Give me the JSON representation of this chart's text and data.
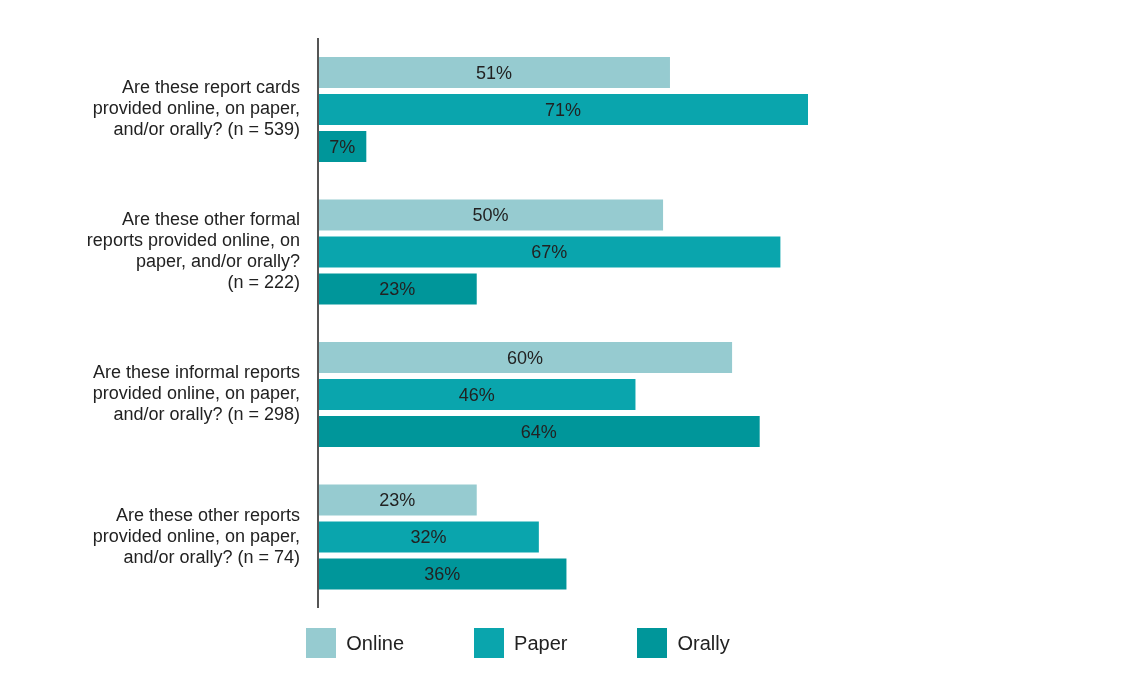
{
  "chart_data": {
    "type": "bar",
    "orientation": "horizontal",
    "categories": [
      "Are these report cards provided online, on paper, and/or orally? (n = 539)",
      "Are these other formal reports provided online, on paper, and/or orally? (n = 222)",
      "Are these informal reports provided online, on paper, and/or orally? (n = 298)",
      "Are these other reports provided online, on paper, and/or orally? (n = 74)"
    ],
    "series": [
      {
        "name": "Online",
        "color": "#96cbd0",
        "values": [
          51,
          50,
          60,
          23
        ],
        "value_labels": [
          "51%",
          "50%",
          "60%",
          "23%"
        ]
      },
      {
        "name": "Paper",
        "color": "#0aa5ad",
        "values": [
          71,
          67,
          46,
          32
        ],
        "value_labels": [
          "71%",
          "67%",
          "46%",
          "32%"
        ]
      },
      {
        "name": "Orally",
        "color": "#00969a",
        "values": [
          7,
          23,
          64,
          36
        ],
        "value_labels": [
          "7%",
          "23%",
          "64%",
          "36%"
        ]
      }
    ],
    "legend": "bottom",
    "grid": false
  }
}
